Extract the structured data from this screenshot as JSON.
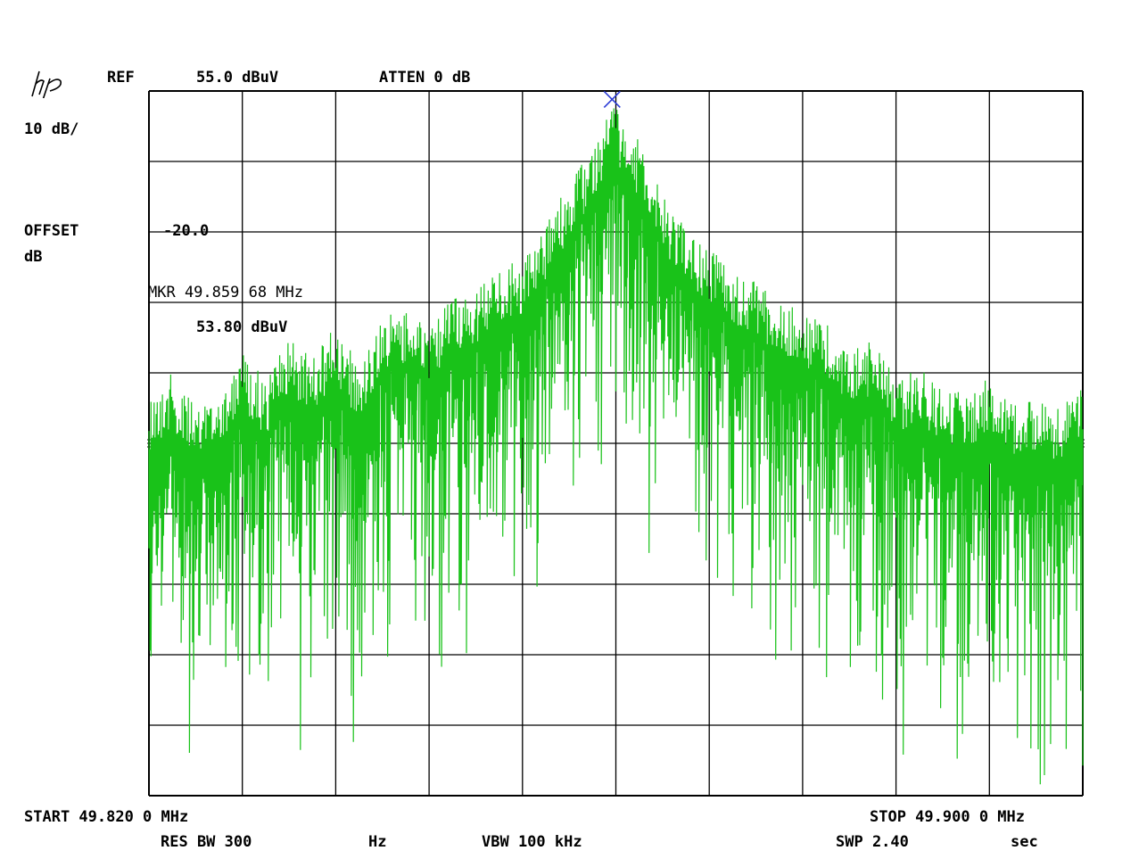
{
  "header": {
    "ref_label": "REF",
    "ref_value": "55.0 dBuV",
    "atten": "ATTEN 0 dB",
    "scale": "10 dB/",
    "offset_label": "OFFSET",
    "offset_unit": "dB",
    "offset_value": "-20.0"
  },
  "marker": {
    "freq": "MKR 49.859 68 MHz",
    "level": "53.80 dBuV"
  },
  "footer": {
    "start": "START 49.820 0 MHz",
    "stop": "STOP 49.900 0 MHz",
    "res_bw": "RES BW 300",
    "res_bw_unit": "Hz",
    "vbw": "VBW 100 kHz",
    "swp": "SWP 2.40",
    "swp_unit": "sec"
  },
  "colors": {
    "trace": "#19c219",
    "grid": "#000000",
    "marker": "#2b3bd6",
    "background": "#ffffff"
  },
  "chart_data": {
    "type": "line",
    "x_unit": "MHz",
    "y_unit": "dBuV",
    "xlim": [
      49.82,
      49.9
    ],
    "ylim": [
      -45.0,
      55.0
    ],
    "grid": true,
    "grid_divisions": {
      "x": 10,
      "y": 10
    },
    "marker": {
      "x": 49.85968,
      "y": 53.8
    },
    "series": [
      {
        "x": [
          49.82,
          49.822,
          49.824,
          49.826,
          49.828,
          49.83,
          49.832,
          49.834,
          49.836,
          49.838,
          49.84,
          49.842,
          49.844,
          49.846,
          49.848,
          49.85,
          49.852,
          49.854,
          49.856,
          49.858,
          49.8597,
          49.862,
          49.864,
          49.866,
          49.868,
          49.87,
          49.872,
          49.874,
          49.876,
          49.878,
          49.88,
          49.882,
          49.884,
          49.886,
          49.888,
          49.89,
          49.892,
          49.894,
          49.896,
          49.898,
          49.9
        ],
        "y": [
          12,
          15,
          10,
          13,
          18,
          14,
          20,
          17,
          22,
          16,
          23,
          24,
          21,
          26,
          27,
          30,
          31,
          36,
          42,
          47,
          53.8,
          48,
          40,
          36,
          33,
          30,
          28,
          25,
          24,
          22,
          18,
          20,
          14,
          16,
          13,
          12,
          15,
          11,
          12,
          10,
          14
        ]
      }
    ]
  }
}
